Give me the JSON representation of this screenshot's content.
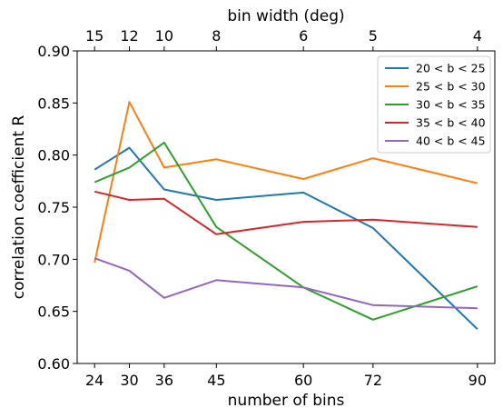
{
  "chart_data": {
    "type": "line",
    "xlabel": "number of bins",
    "ylabel": "correlation coefficient R",
    "x2label": "bin width (deg)",
    "x": [
      24,
      30,
      36,
      45,
      60,
      72,
      90
    ],
    "xlim": [
      21,
      93
    ],
    "ylim": [
      0.6,
      0.9
    ],
    "x_ticks": [
      "24",
      "30",
      "36",
      "45",
      "60",
      "72",
      "90"
    ],
    "x2_ticks": [
      "15",
      "12",
      "10",
      "8",
      "6",
      "5",
      "4"
    ],
    "x2_tick_positions": [
      24,
      30,
      36,
      45,
      60,
      72,
      90
    ],
    "y_ticks": [
      "0.60",
      "0.65",
      "0.70",
      "0.75",
      "0.80",
      "0.85",
      "0.90"
    ],
    "y_tick_values": [
      0.6,
      0.65,
      0.7,
      0.75,
      0.8,
      0.85,
      0.9
    ],
    "grid": false,
    "legend_position": "top-right",
    "series": [
      {
        "name": "20 < b < 25",
        "color": "#1f77b4",
        "values": [
          0.786,
          0.807,
          0.767,
          0.757,
          0.764,
          0.73,
          0.633
        ]
      },
      {
        "name": "25 < b < 30",
        "color": "#ff7f0e",
        "values": [
          0.697,
          0.851,
          0.788,
          0.796,
          0.777,
          0.797,
          0.773
        ]
      },
      {
        "name": "30 < b < 35",
        "color": "#2ca02c",
        "values": [
          0.774,
          0.788,
          0.812,
          0.731,
          0.673,
          0.642,
          0.674
        ]
      },
      {
        "name": "35 < b < 40",
        "color": "#d62728",
        "values": [
          0.765,
          0.757,
          0.758,
          0.724,
          0.736,
          0.738,
          0.731
        ]
      },
      {
        "name": "40 < b < 45",
        "color": "#9467bd",
        "values": [
          0.701,
          0.689,
          0.663,
          0.68,
          0.673,
          0.656,
          0.653
        ]
      }
    ]
  }
}
